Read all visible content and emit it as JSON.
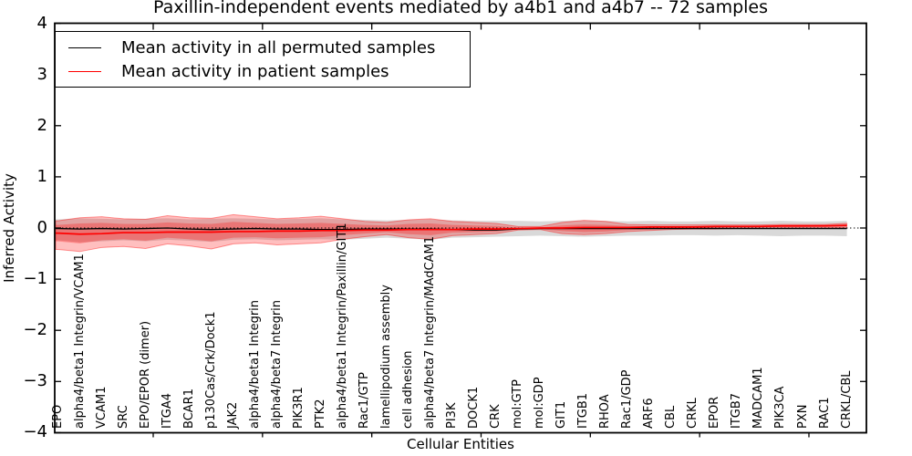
{
  "title": "Paxillin-independent events mediated by a4b1 and a4b7 -- 72 samples",
  "legend": {
    "items": [
      {
        "label": "Mean activity in all permuted samples",
        "color": "#000000"
      },
      {
        "label": "Mean activity in patient samples",
        "color": "#ff0000"
      }
    ]
  },
  "chart_data": {
    "type": "line",
    "title": "Paxillin-independent events mediated by a4b1 and a4b7 -- 72 samples",
    "xlabel": "Cellular Entities",
    "ylabel": "Inferred Activity",
    "ylim": [
      -4,
      4
    ],
    "y_ticks": [
      4,
      3,
      2,
      1,
      0,
      -1,
      -2,
      -3,
      -4
    ],
    "grid": false,
    "zero_line_style": "dotted",
    "legend_position": "upper left",
    "categories": [
      "EPO",
      "alpha4/beta1 Integrin/VCAM1",
      "VCAM1",
      "SRC",
      "EPO/EPOR (dimer)",
      "ITGA4",
      "BCAR1",
      "p130Cas/Crk/Dock1",
      "JAK2",
      "alpha4/beta1 Integrin",
      "alpha4/beta7 Integrin",
      "PIK3R1",
      "PTK2",
      "alpha4/beta1 Integrin/Paxillin/GIT1",
      "Rac1/GTP",
      "lamellipodium assembly",
      "cell adhesion",
      "alpha4/beta7 Integrin/MAdCAM1",
      "PI3K",
      "DOCK1",
      "CRK",
      "mol:GTP",
      "mol:GDP",
      "GIT1",
      "ITGB1",
      "RHOA",
      "Rac1/GDP",
      "ARF6",
      "CBL",
      "CRKL",
      "EPOR",
      "ITGB7",
      "MADCAM1",
      "PIK3CA",
      "PXN",
      "RAC1",
      "CRKL/CBL"
    ],
    "series": [
      {
        "name": "Mean activity in all permuted samples",
        "color": "#000000",
        "values": [
          -0.01,
          -0.02,
          -0.01,
          -0.02,
          -0.01,
          0.0,
          -0.02,
          -0.03,
          -0.02,
          -0.01,
          -0.02,
          -0.02,
          -0.03,
          -0.03,
          -0.02,
          -0.02,
          -0.02,
          -0.02,
          -0.03,
          -0.04,
          -0.04,
          -0.02,
          -0.01,
          -0.01,
          -0.01,
          -0.01,
          -0.01,
          -0.01,
          -0.01,
          -0.01,
          -0.01,
          -0.01,
          -0.01,
          -0.01,
          -0.01,
          -0.01,
          -0.01
        ]
      },
      {
        "name": "Mean activity in patient samples",
        "color": "#ff0000",
        "values": [
          -0.1,
          -0.12,
          -0.11,
          -0.09,
          -0.09,
          -0.08,
          -0.08,
          -0.08,
          -0.07,
          -0.07,
          -0.06,
          -0.06,
          -0.05,
          -0.05,
          -0.04,
          -0.04,
          -0.03,
          -0.03,
          -0.03,
          -0.02,
          -0.02,
          -0.01,
          0.0,
          0.0,
          0.01,
          0.01,
          0.01,
          0.02,
          0.02,
          0.02,
          0.03,
          0.03,
          0.03,
          0.04,
          0.04,
          0.04,
          0.05
        ]
      }
    ],
    "bands": [
      {
        "name": "permuted-samples-range",
        "fill": "rgba(130,130,130,0.30)",
        "stroke": "none",
        "upper": [
          0.17,
          0.19,
          0.18,
          0.17,
          0.18,
          0.19,
          0.17,
          0.18,
          0.19,
          0.18,
          0.17,
          0.18,
          0.19,
          0.17,
          0.16,
          0.15,
          0.16,
          0.17,
          0.15,
          0.14,
          0.14,
          0.14,
          0.13,
          0.14,
          0.15,
          0.14,
          0.13,
          0.14,
          0.13,
          0.13,
          0.14,
          0.13,
          0.13,
          0.14,
          0.13,
          0.13,
          0.14
        ],
        "lower": [
          -0.24,
          -0.28,
          -0.26,
          -0.24,
          -0.26,
          -0.23,
          -0.25,
          -0.27,
          -0.23,
          -0.22,
          -0.24,
          -0.23,
          -0.22,
          -0.23,
          -0.21,
          -0.19,
          -0.21,
          -0.23,
          -0.19,
          -0.18,
          -0.17,
          -0.16,
          -0.15,
          -0.16,
          -0.17,
          -0.16,
          -0.15,
          -0.15,
          -0.14,
          -0.14,
          -0.15,
          -0.14,
          -0.15,
          -0.16,
          -0.15,
          -0.15,
          -0.16
        ]
      },
      {
        "name": "patient-samples-outer-band",
        "fill": "rgba(255,0,0,0.25)",
        "stroke": "rgba(255,0,0,0.40)",
        "upper": [
          0.14,
          0.2,
          0.22,
          0.18,
          0.17,
          0.24,
          0.2,
          0.19,
          0.26,
          0.22,
          0.18,
          0.2,
          0.23,
          0.18,
          0.13,
          0.11,
          0.16,
          0.18,
          0.13,
          0.11,
          0.09,
          0.03,
          0.03,
          0.11,
          0.15,
          0.13,
          0.07,
          0.06,
          0.06,
          0.06,
          0.06,
          0.06,
          0.06,
          0.07,
          0.07,
          0.07,
          0.09
        ],
        "lower": [
          -0.42,
          -0.46,
          -0.38,
          -0.36,
          -0.4,
          -0.31,
          -0.35,
          -0.41,
          -0.31,
          -0.29,
          -0.33,
          -0.31,
          -0.29,
          -0.22,
          -0.17,
          -0.13,
          -0.19,
          -0.22,
          -0.15,
          -0.13,
          -0.11,
          -0.04,
          -0.03,
          -0.11,
          -0.13,
          -0.11,
          -0.07,
          -0.05,
          -0.03,
          -0.02,
          -0.02,
          -0.01,
          -0.01,
          0.0,
          0.0,
          0.0,
          0.01
        ]
      },
      {
        "name": "patient-samples-inner-band",
        "fill": "rgba(255,0,0,0.28)",
        "stroke": "none",
        "upper": [
          0.06,
          0.09,
          0.1,
          0.08,
          0.08,
          0.11,
          0.09,
          0.08,
          0.12,
          0.1,
          0.08,
          0.09,
          0.1,
          0.08,
          0.06,
          0.05,
          0.08,
          0.09,
          0.06,
          0.05,
          0.04,
          0.01,
          0.01,
          0.05,
          0.07,
          0.06,
          0.04,
          0.03,
          0.03,
          0.04,
          0.04,
          0.04,
          0.05,
          0.05,
          0.05,
          0.06,
          0.07
        ],
        "lower": [
          -0.26,
          -0.3,
          -0.24,
          -0.22,
          -0.25,
          -0.19,
          -0.22,
          -0.26,
          -0.19,
          -0.18,
          -0.2,
          -0.19,
          -0.18,
          -0.14,
          -0.11,
          -0.08,
          -0.12,
          -0.14,
          -0.09,
          -0.08,
          -0.07,
          -0.02,
          -0.02,
          -0.06,
          -0.08,
          -0.07,
          -0.04,
          -0.03,
          -0.01,
          0.0,
          0.0,
          0.01,
          0.01,
          0.02,
          0.02,
          0.03,
          0.03
        ]
      }
    ]
  }
}
